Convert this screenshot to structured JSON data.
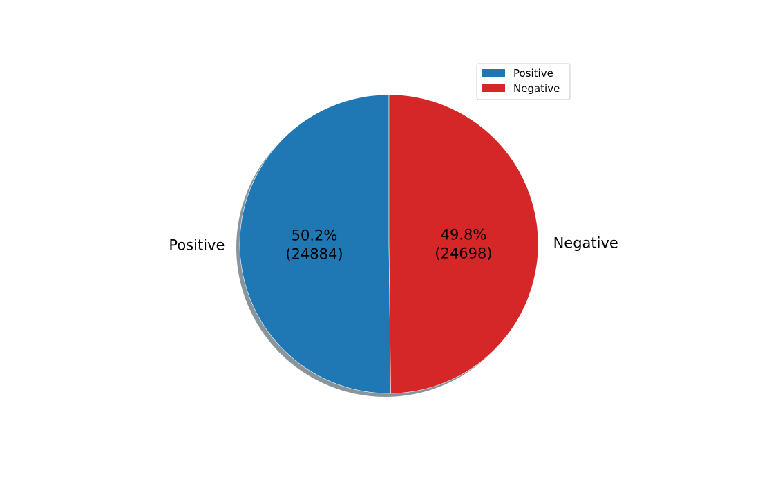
{
  "chart_data": {
    "type": "pie",
    "categories": [
      "Positive",
      "Negative"
    ],
    "values": [
      24884,
      24698
    ],
    "percent_labels": [
      "50.2%",
      "49.8%"
    ],
    "count_labels": [
      "(24884)",
      "(24698)"
    ],
    "colors": [
      "#1f77b4",
      "#d62728"
    ],
    "shadow": true,
    "start_angle_deg": 90,
    "direction": "counterclockwise",
    "legend": {
      "placement": "upper-right",
      "entries": [
        "Positive",
        "Negative"
      ]
    }
  }
}
